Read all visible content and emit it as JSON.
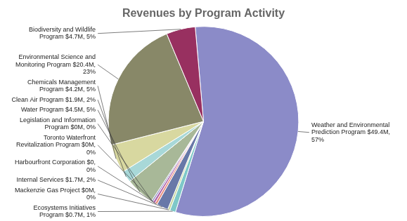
{
  "chart_data": {
    "type": "pie",
    "title": "Revenues by Program Activity",
    "categories": [
      "Weather and Environmental\nPrediction Program $49.4M,\n57%",
      "Ecosystems Initiatives\nProgram $0.7M, 1%",
      "Mackenzie Gas Project $0M,\n0%",
      "Internal Services $1.7M, 2%",
      "Harbourfront Corporation $0,\n0%",
      "Toronto Waterfront\nRevitalization Program $0M,\n0%",
      "Legislation and Information\nProgram $0M, 0%",
      "Water Program $4.5M, 5%",
      "Clean Air Program $1.9M, 2%",
      "Chemicals Management\nProgram $4.2M, 5%",
      "Environmental Science and\nMonitoring Program $20.4M,\n23%",
      "Biodiversity and Wildlife\nProgram $4.7M, 5%"
    ],
    "values": [
      57,
      1,
      0.4,
      2,
      0.4,
      0.4,
      0.3,
      5,
      2,
      5,
      23,
      5
    ],
    "colors": [
      "#8b8bc8",
      "#7ec8c8",
      "#c8d8a0",
      "#6878a8",
      "#e89080",
      "#b060a8",
      "#9898c8",
      "#a8b898",
      "#a8d8d8",
      "#d8d8a0",
      "#888868",
      "#983060"
    ]
  }
}
